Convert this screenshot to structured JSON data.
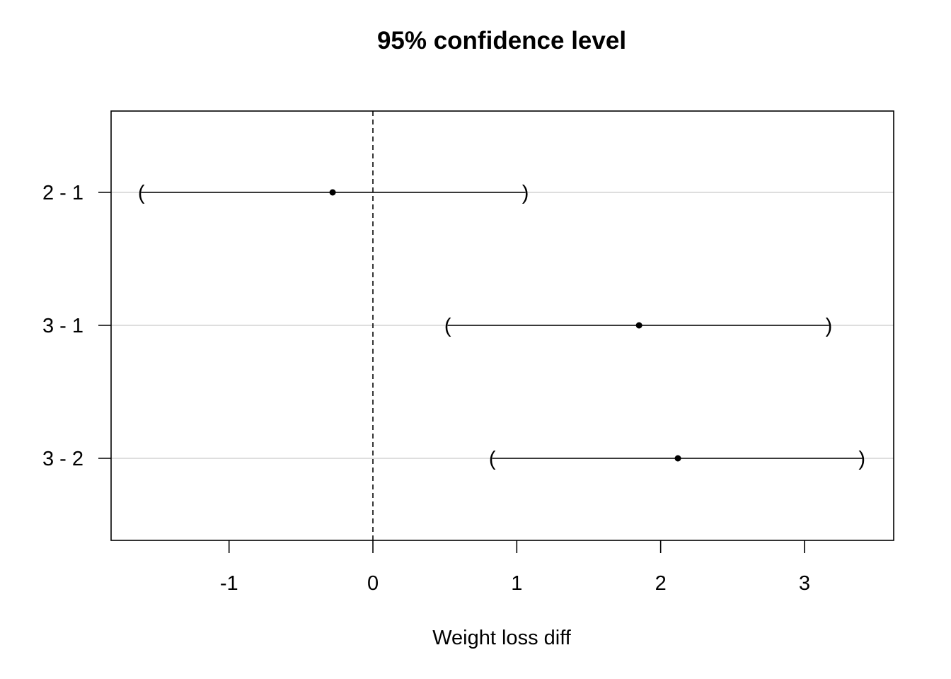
{
  "chart_data": {
    "type": "interval",
    "title": "95% confidence level",
    "xlabel": "Weight loss diff",
    "ylabel": "",
    "xlim": [
      -1.82,
      3.62
    ],
    "x_ticks": [
      -1,
      0,
      1,
      2,
      3
    ],
    "x_tick_labels": [
      "-1",
      "0",
      "1",
      "2",
      "3"
    ],
    "reference_line": 0,
    "categories": [
      "2 - 1",
      "3 - 1",
      "3 - 2"
    ],
    "estimates": [
      -0.28,
      1.85,
      2.12
    ],
    "lower": [
      -1.61,
      0.52,
      0.83
    ],
    "upper": [
      1.06,
      3.17,
      3.4
    ],
    "grid": "horizontal"
  }
}
